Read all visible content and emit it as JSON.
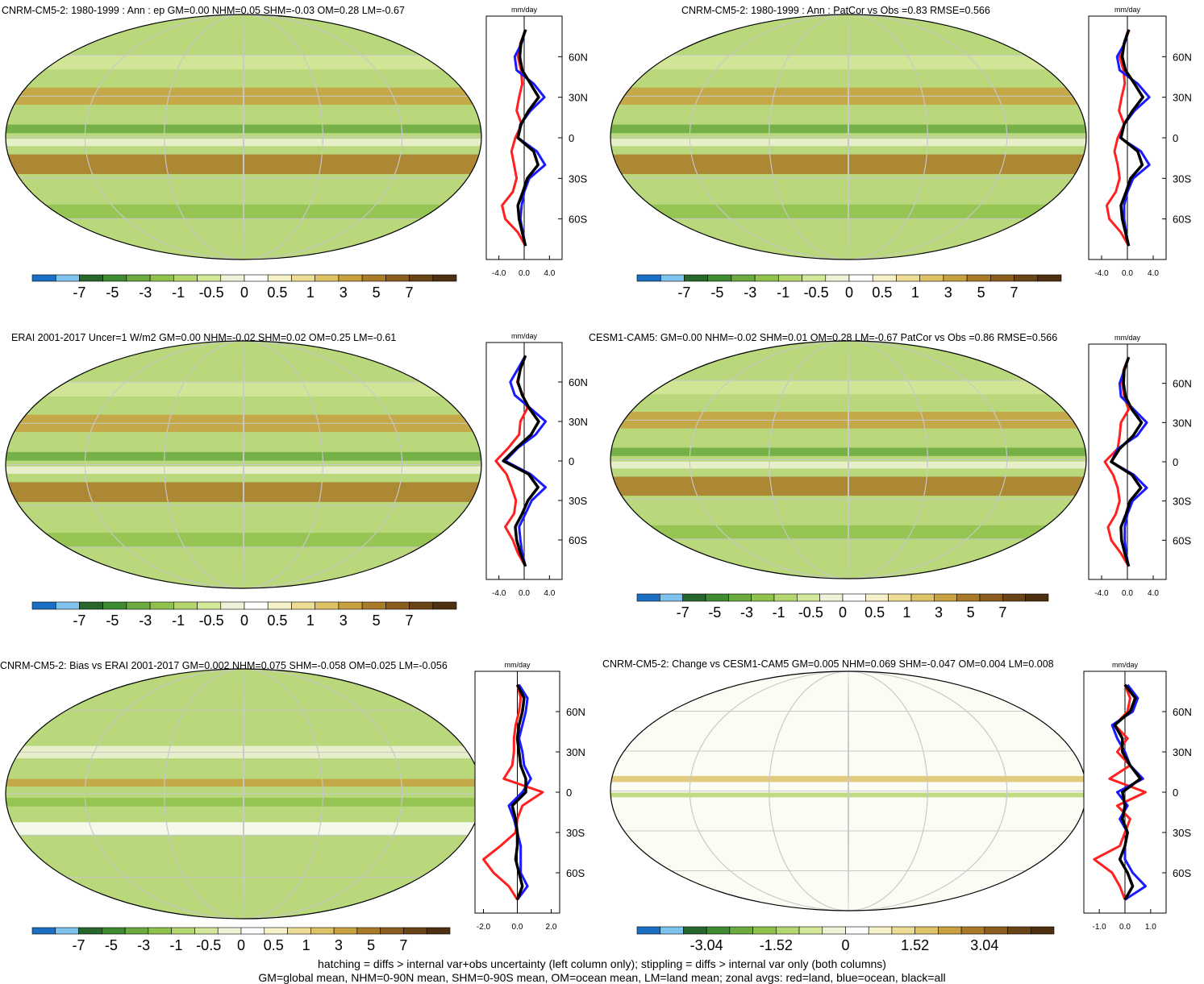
{
  "colors": {
    "diverging": [
      "#1b6fc4",
      "#7ec2ee",
      "#27672c",
      "#3f8b32",
      "#6aaa3f",
      "#8fc24d",
      "#b4d66e",
      "#d3e79b",
      "#eef3d8",
      "#ffffff",
      "#f6f1c8",
      "#eddc93",
      "#ddc266",
      "#c7a03f",
      "#a97a28",
      "#8a5c1e",
      "#6a4417",
      "#4e3010"
    ],
    "land": "#ff2020",
    "ocean": "#1a1aff",
    "all": "#000000",
    "grid": "#c8c8c8"
  },
  "zonal_axis_title": "mm/day",
  "lat_labels": [
    "60N",
    "30N",
    "0",
    "30S",
    "60S"
  ],
  "footnotes": [
    "hatching = diffs > internal var+obs uncertainty (left column only); stippling = diffs > internal var only (both columns)",
    "GM=global mean, NHM=0-90N mean, SHM=0-90S mean, OM=ocean mean, LM=land mean; zonal avgs: red=land, blue=ocean, black=all"
  ],
  "chart_data": [
    {
      "type": "heatmap",
      "title": "CNRM-CM5-2: 1980-1999 : Ann : ep GM=0.00 NHM=0.05 SHM=-0.03 OM=0.28 LM=-0.67",
      "colorbar_labels": [
        "-7",
        "-5",
        "-3",
        "-1",
        "-0.5",
        "0",
        "0.5",
        "1",
        "3",
        "5",
        "7"
      ],
      "zonal_ticks": [
        "-4.0",
        "0.0",
        "4.0"
      ],
      "zonal_xlim": [
        -6,
        6
      ],
      "lat": [
        80,
        70,
        60,
        50,
        40,
        30,
        20,
        10,
        0,
        -10,
        -20,
        -30,
        -40,
        -50,
        -60,
        -70,
        -80
      ],
      "series": [
        {
          "name": "land",
          "values": [
            0.3,
            -0.6,
            -1.0,
            -0.5,
            -0.3,
            -0.8,
            -1.2,
            -0.4,
            -1.4,
            -2.0,
            -1.6,
            -1.2,
            -1.8,
            -3.5,
            -3.0,
            -1.0,
            0.2
          ]
        },
        {
          "name": "ocean",
          "values": [
            0.2,
            -0.4,
            -1.5,
            -1.2,
            1.5,
            3.2,
            1.0,
            -0.6,
            -1.0,
            2.0,
            3.3,
            0.8,
            0.0,
            -0.4,
            -0.6,
            -0.2,
            0.2
          ]
        },
        {
          "name": "all",
          "values": [
            0.2,
            -0.5,
            -0.7,
            -0.3,
            1.0,
            2.3,
            0.7,
            -0.5,
            -1.0,
            1.5,
            2.2,
            0.5,
            -0.2,
            -1.0,
            -0.8,
            -0.3,
            0.2
          ]
        }
      ]
    },
    {
      "type": "heatmap",
      "title": "CNRM-CM5-2: 1980-1999 : Ann : PatCor vs Obs =0.83 RMSE=0.566",
      "colorbar_labels": [
        "-7",
        "-5",
        "-3",
        "-1",
        "-0.5",
        "0",
        "0.5",
        "1",
        "3",
        "5",
        "7"
      ],
      "zonal_ticks": [
        "-4.0",
        "0.0",
        "4.0"
      ],
      "zonal_xlim": [
        -6,
        6
      ],
      "lat": [
        80,
        70,
        60,
        50,
        40,
        30,
        20,
        10,
        0,
        -10,
        -20,
        -30,
        -40,
        -50,
        -60,
        -70,
        -80
      ],
      "series": [
        {
          "name": "land",
          "values": [
            0.3,
            -0.5,
            -1.2,
            -0.6,
            -0.4,
            -0.9,
            -1.3,
            -0.5,
            -1.5,
            -2.0,
            -1.5,
            -1.2,
            -1.8,
            -3.2,
            -2.8,
            -1.0,
            0.2
          ]
        },
        {
          "name": "ocean",
          "values": [
            0.2,
            -0.4,
            -1.6,
            -1.2,
            1.6,
            3.4,
            1.1,
            -0.5,
            -1.1,
            2.1,
            3.4,
            0.9,
            0.0,
            -0.5,
            -0.5,
            -0.2,
            0.2
          ]
        },
        {
          "name": "all",
          "values": [
            0.2,
            -0.5,
            -0.8,
            -0.3,
            1.1,
            2.4,
            0.8,
            -0.5,
            -1.0,
            1.6,
            2.3,
            0.5,
            -0.2,
            -1.0,
            -0.8,
            -0.3,
            0.2
          ]
        }
      ]
    },
    {
      "type": "heatmap",
      "title": "ERAI 2001-2017 Uncer=1 W/m2 GM=0.00 NHM=-0.02 SHM=0.02 OM=0.25 LM=-0.61",
      "colorbar_labels": [
        "-7",
        "-5",
        "-3",
        "-1",
        "-0.5",
        "0",
        "0.5",
        "1",
        "3",
        "5",
        "7"
      ],
      "zonal_ticks": [
        "-4.0",
        "0.0",
        "4.0"
      ],
      "zonal_xlim": [
        -6,
        6
      ],
      "lat": [
        80,
        70,
        60,
        50,
        40,
        30,
        20,
        10,
        0,
        -10,
        -20,
        -30,
        -40,
        -50,
        -60,
        -70,
        -80
      ],
      "series": [
        {
          "name": "land",
          "values": [
            0.2,
            -0.6,
            -1.1,
            -0.2,
            0.5,
            -0.6,
            -0.8,
            -2.5,
            -4.5,
            -2.8,
            -2.0,
            -1.3,
            -1.6,
            -3.0,
            -1.8,
            -1.0,
            0.2
          ]
        },
        {
          "name": "ocean",
          "values": [
            0.2,
            -1.0,
            -2.2,
            -1.5,
            1.0,
            3.4,
            1.8,
            -1.0,
            -3.0,
            1.0,
            3.4,
            1.2,
            0.2,
            -0.8,
            -0.6,
            -0.3,
            0.2
          ]
        },
        {
          "name": "all",
          "values": [
            0.2,
            -0.6,
            -1.0,
            -0.3,
            0.8,
            2.3,
            1.1,
            -1.2,
            -3.3,
            0.7,
            2.2,
            0.6,
            -0.3,
            -1.4,
            -1.2,
            -0.6,
            0.2
          ]
        }
      ]
    },
    {
      "type": "heatmap",
      "title": "CESM1-CAM5: GM=0.00 NHM=-0.02 SHM=0.01 OM=0.28 LM=-0.67 PatCor vs Obs =0.86 RMSE=0.566",
      "colorbar_labels": [
        "-7",
        "-5",
        "-3",
        "-1",
        "-0.5",
        "0",
        "0.5",
        "1",
        "3",
        "5",
        "7"
      ],
      "zonal_ticks": [
        "-4.0",
        "0.0",
        "4.0"
      ],
      "zonal_xlim": [
        -6,
        6
      ],
      "lat": [
        80,
        70,
        60,
        50,
        40,
        30,
        20,
        10,
        0,
        -10,
        -20,
        -30,
        -40,
        -50,
        -60,
        -70,
        -80
      ],
      "series": [
        {
          "name": "land",
          "values": [
            0.2,
            -0.6,
            -0.8,
            -0.5,
            0.2,
            -1.0,
            -1.2,
            -1.5,
            -3.5,
            -2.2,
            -1.5,
            -1.2,
            -1.8,
            -3.0,
            -2.5,
            -1.0,
            0.2
          ]
        },
        {
          "name": "ocean",
          "values": [
            0.2,
            -0.5,
            -1.2,
            -1.0,
            1.0,
            3.0,
            1.5,
            -1.5,
            -2.5,
            1.0,
            3.0,
            0.8,
            0.0,
            -0.4,
            -0.4,
            -0.2,
            0.2
          ]
        },
        {
          "name": "all",
          "values": [
            0.2,
            -0.5,
            -0.6,
            -0.3,
            0.7,
            2.2,
            0.9,
            -1.2,
            -2.5,
            0.7,
            2.1,
            0.4,
            -0.2,
            -1.0,
            -0.9,
            -0.4,
            0.2
          ]
        }
      ]
    },
    {
      "type": "heatmap",
      "title": "CNRM-CM5-2: Bias vs ERAI 2001-2017 GM=0.002 NHM=0.075 SHM=-0.058 OM=0.025 LM=-0.056",
      "colorbar_labels": [
        "-7",
        "-5",
        "-3",
        "-1",
        "-0.5",
        "0",
        "0.5",
        "1",
        "3",
        "5",
        "7"
      ],
      "zonal_ticks": [
        "-2.0",
        "0.0",
        "2.0"
      ],
      "zonal_xlim": [
        -2.5,
        2.5
      ],
      "lat": [
        80,
        70,
        60,
        50,
        40,
        30,
        20,
        10,
        0,
        -10,
        -20,
        -30,
        -40,
        -50,
        -60,
        -70,
        -80
      ],
      "series": [
        {
          "name": "land",
          "values": [
            0.0,
            0.2,
            0.1,
            -0.1,
            -0.2,
            -0.2,
            -0.3,
            -0.8,
            1.5,
            0.3,
            0.0,
            -0.1,
            -1.0,
            -2.0,
            -1.4,
            -0.5,
            0.0
          ]
        },
        {
          "name": "ocean",
          "values": [
            0.1,
            0.6,
            0.5,
            0.3,
            0.1,
            0.3,
            0.4,
            0.8,
            0.3,
            -0.5,
            -0.2,
            0.0,
            0.2,
            0.2,
            0.2,
            0.6,
            0.0
          ]
        },
        {
          "name": "all",
          "values": [
            0.0,
            0.4,
            0.3,
            0.1,
            0.0,
            0.1,
            0.2,
            0.5,
            0.5,
            -0.3,
            -0.1,
            0.0,
            0.0,
            -0.1,
            0.1,
            0.3,
            0.0
          ]
        }
      ]
    },
    {
      "type": "heatmap",
      "title": "CNRM-CM5-2: Change vs CESM1-CAM5 GM=0.005 NHM=0.069 SHM=-0.047 OM=0.004 LM=0.008",
      "colorbar_labels": [
        "-3.04",
        "-1.52",
        "0",
        "1.52",
        "3.04"
      ],
      "zonal_ticks": [
        "-1.0",
        "0.0",
        "1.0"
      ],
      "zonal_xlim": [
        -1.6,
        1.6
      ],
      "lat": [
        80,
        70,
        60,
        50,
        40,
        30,
        20,
        10,
        0,
        -10,
        -20,
        -30,
        -40,
        -50,
        -60,
        -70,
        -80
      ],
      "series": [
        {
          "name": "land",
          "values": [
            0.0,
            0.2,
            0.1,
            -0.4,
            0.1,
            -0.3,
            0.2,
            -0.6,
            0.8,
            -0.3,
            0.2,
            0.0,
            -0.2,
            -1.2,
            -0.5,
            -0.2,
            0.0
          ]
        },
        {
          "name": "ocean",
          "values": [
            0.1,
            0.5,
            0.3,
            -0.5,
            -0.3,
            0.0,
            0.2,
            0.7,
            -0.3,
            0.1,
            -0.2,
            0.1,
            0.0,
            0.0,
            0.3,
            0.8,
            0.0
          ]
        },
        {
          "name": "all",
          "values": [
            0.0,
            0.4,
            0.2,
            -0.4,
            -0.1,
            -0.1,
            0.2,
            0.6,
            -0.1,
            0.0,
            -0.1,
            0.1,
            0.0,
            -0.2,
            0.1,
            0.3,
            0.0
          ]
        }
      ]
    }
  ]
}
